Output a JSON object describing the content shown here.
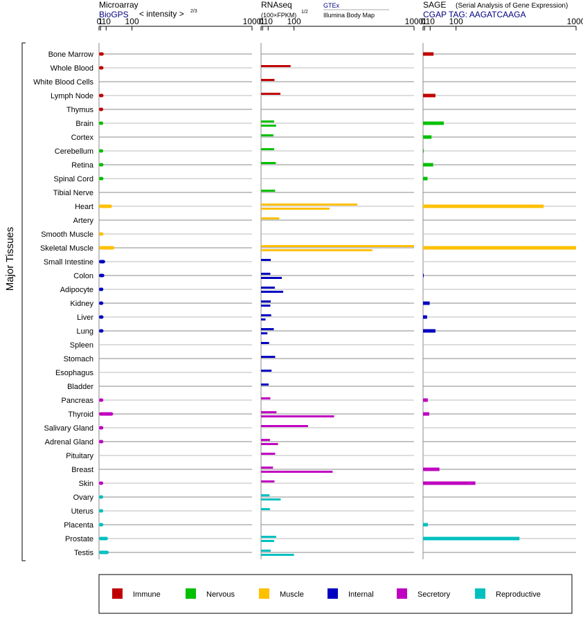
{
  "chart_data": {
    "type": "bar",
    "y_axis_label": "Major Tissues",
    "tissues": [
      "Bone Marrow",
      "Whole Blood",
      "White Blood Cells",
      "Lymph Node",
      "Thymus",
      "Brain",
      "Cortex",
      "Cerebellum",
      "Retina",
      "Spinal Cord",
      "Tibial Nerve",
      "Heart",
      "Artery",
      "Smooth Muscle",
      "Skeletal Muscle",
      "Small Intestine",
      "Colon",
      "Adipocyte",
      "Kidney",
      "Liver",
      "Lung",
      "Spleen",
      "Stomach",
      "Esophagus",
      "Bladder",
      "Pancreas",
      "Thyroid",
      "Salivary Gland",
      "Adrenal Gland",
      "Pituitary",
      "Breast",
      "Skin",
      "Ovary",
      "Uterus",
      "Placenta",
      "Prostate",
      "Testis"
    ],
    "tissue_groups": [
      "Immune",
      "Immune",
      "Immune",
      "Immune",
      "Immune",
      "Nervous",
      "Nervous",
      "Nervous",
      "Nervous",
      "Nervous",
      "Nervous",
      "Muscle",
      "Muscle",
      "Muscle",
      "Muscle",
      "Internal",
      "Internal",
      "Internal",
      "Internal",
      "Internal",
      "Internal",
      "Internal",
      "Internal",
      "Internal",
      "Internal",
      "Secretory",
      "Secretory",
      "Secretory",
      "Secretory",
      "Secretory",
      "Secretory",
      "Secretory",
      "Reproductive",
      "Reproductive",
      "Reproductive",
      "Reproductive",
      "Reproductive"
    ],
    "axis_ticks": [
      "0",
      "1",
      "10",
      "100",
      "1000"
    ],
    "axis_tick_values": [
      0,
      1,
      10,
      100,
      1000
    ],
    "axis_max": 1000,
    "scale": "power 2/3 (pseudo-log)",
    "legend": [
      {
        "name": "Immune",
        "color": "#c00000"
      },
      {
        "name": "Nervous",
        "color": "#00c000"
      },
      {
        "name": "Muscle",
        "color": "#ffc000"
      },
      {
        "name": "Internal",
        "color": "#0000c0"
      },
      {
        "name": "Secretory",
        "color": "#c000c0"
      },
      {
        "name": "Reproductive",
        "color": "#00c0c0"
      }
    ],
    "panels": [
      {
        "title": "Microarray",
        "source": "BioGPS",
        "measure_text": "< intensity >",
        "measure_exp": "2/3",
        "values": [
          [
            5.5
          ],
          [
            5.0
          ],
          [
            null
          ],
          [
            5.0
          ],
          [
            4.6
          ],
          [
            4.6
          ],
          [
            null
          ],
          [
            4.6
          ],
          [
            5.0
          ],
          [
            5.0
          ],
          [
            null
          ],
          [
            25
          ],
          [
            null
          ],
          [
            5.0
          ],
          [
            32
          ],
          [
            8.0
          ],
          [
            6.5
          ],
          [
            4.8
          ],
          [
            4.8
          ],
          [
            5.0
          ],
          [
            5.0
          ],
          [
            null
          ],
          [
            null
          ],
          [
            null
          ],
          [
            null
          ],
          [
            4.8
          ],
          [
            28
          ],
          [
            4.8
          ],
          [
            4.8
          ],
          [
            null
          ],
          [
            null
          ],
          [
            4.6
          ],
          [
            4.6
          ],
          [
            4.6
          ],
          [
            4.8
          ],
          [
            14
          ],
          [
            16
          ]
        ]
      },
      {
        "title": "RNAseq",
        "measure_text": "(100×FPKM)",
        "measure_exp": "1/2",
        "sources": [
          "GTEx",
          "Illumina Body Map"
        ],
        "values": [
          [
            null
          ],
          [
            85
          ],
          [
            26
          ],
          [
            45
          ],
          [
            null
          ],
          [
            25,
            31
          ],
          [
            23
          ],
          [
            25
          ],
          [
            30
          ],
          [
            null
          ],
          [
            28
          ],
          [
            500,
            300
          ],
          [
            41
          ],
          [
            null
          ],
          [
            1000,
            620
          ],
          [
            16
          ],
          [
            15,
            50
          ],
          [
            27,
            55
          ],
          [
            16,
            15
          ],
          [
            17,
            5
          ],
          [
            24,
            8.5
          ],
          [
            12
          ],
          [
            28
          ],
          [
            18
          ],
          [
            11
          ],
          [
            15
          ],
          [
            32,
            330
          ],
          [
            170
          ],
          [
            14,
            37
          ],
          [
            28
          ],
          [
            22,
            320
          ],
          [
            26
          ],
          [
            13,
            46
          ],
          [
            14
          ],
          [
            null
          ],
          [
            31,
            25
          ],
          [
            16,
            100
          ]
        ]
      },
      {
        "title": "SAGE",
        "subtitle": "(Serial Analysis of Gene Expression)",
        "source": "CGAP  TAG: AAGATCAAGA",
        "values": [
          [
            18
          ],
          [
            null
          ],
          [
            null
          ],
          [
            23
          ],
          [
            null
          ],
          [
            50
          ],
          [
            13
          ],
          [
            0.05
          ],
          [
            17
          ],
          [
            5.0
          ],
          [
            null
          ],
          [
            700
          ],
          [
            null
          ],
          [
            null
          ],
          [
            1000
          ],
          [
            null
          ],
          [
            0.05
          ],
          [
            null
          ],
          [
            9.0
          ],
          [
            4.2
          ],
          [
            23
          ],
          [
            null
          ],
          [
            null
          ],
          [
            null
          ],
          [
            null
          ],
          [
            5.5
          ],
          [
            8.0
          ],
          [
            null
          ],
          [
            null
          ],
          [
            null
          ],
          [
            35
          ],
          [
            200
          ],
          [
            null
          ],
          [
            null
          ],
          [
            5.5
          ],
          [
            500
          ],
          [
            null
          ]
        ]
      }
    ]
  }
}
